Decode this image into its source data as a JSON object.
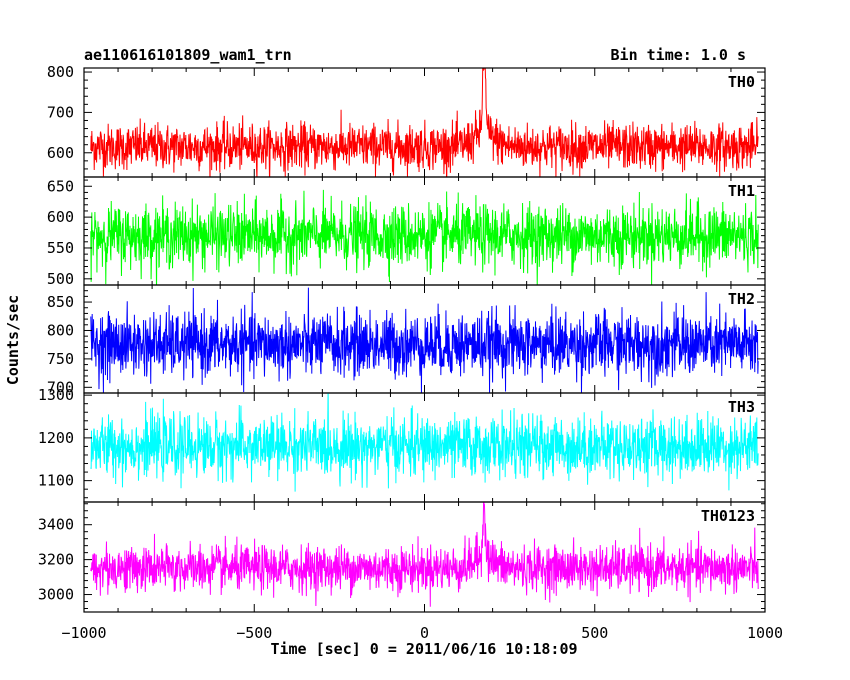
{
  "header": {
    "title": "ae110616101809_wam1_trn",
    "bin_time": "Bin time: 1.0 s"
  },
  "chart_data": {
    "type": "line",
    "title": "ae110616101809_wam1_trn",
    "xlabel": "Time [sec] 0 = 2011/06/16 10:18:09",
    "ylabel": "Counts/sec",
    "xlim": [
      -1000,
      1000
    ],
    "x_ticks": [
      -1000,
      -500,
      0,
      500,
      1000
    ],
    "x_tick_labels": [
      "−1000",
      "−500",
      "0",
      "500",
      "1000"
    ],
    "x_range_data": [
      -980,
      980
    ],
    "bin_time_s": 1.0,
    "panels": [
      {
        "name": "TH0",
        "color": "#ff0000",
        "ylim": [
          540,
          810
        ],
        "yticks": [
          600,
          700,
          800
        ],
        "baseline": 615,
        "noise": 28,
        "x_peak": 175,
        "peak_height": 210,
        "hump": 35
      },
      {
        "name": "TH1",
        "color": "#00ff00",
        "ylim": [
          490,
          665
        ],
        "yticks": [
          500,
          550,
          600,
          650
        ],
        "baseline": 570,
        "noise": 25,
        "x_peak": null,
        "peak_height": 0,
        "hump": 0
      },
      {
        "name": "TH2",
        "color": "#0000ff",
        "ylim": [
          690,
          880
        ],
        "yticks": [
          700,
          750,
          800,
          850
        ],
        "baseline": 775,
        "noise": 28,
        "x_peak": null,
        "peak_height": 0,
        "hump": 0
      },
      {
        "name": "TH3",
        "color": "#00ffff",
        "ylim": [
          1050,
          1305
        ],
        "yticks": [
          1100,
          1200,
          1300
        ],
        "baseline": 1180,
        "noise": 35,
        "x_peak": null,
        "peak_height": 0,
        "hump": 0
      },
      {
        "name": "TH0123",
        "color": "#ff00ff",
        "ylim": [
          2900,
          3530
        ],
        "yticks": [
          3000,
          3200,
          3400
        ],
        "baseline": 3150,
        "noise": 65,
        "x_peak": 175,
        "peak_height": 320,
        "hump": 60
      }
    ]
  }
}
